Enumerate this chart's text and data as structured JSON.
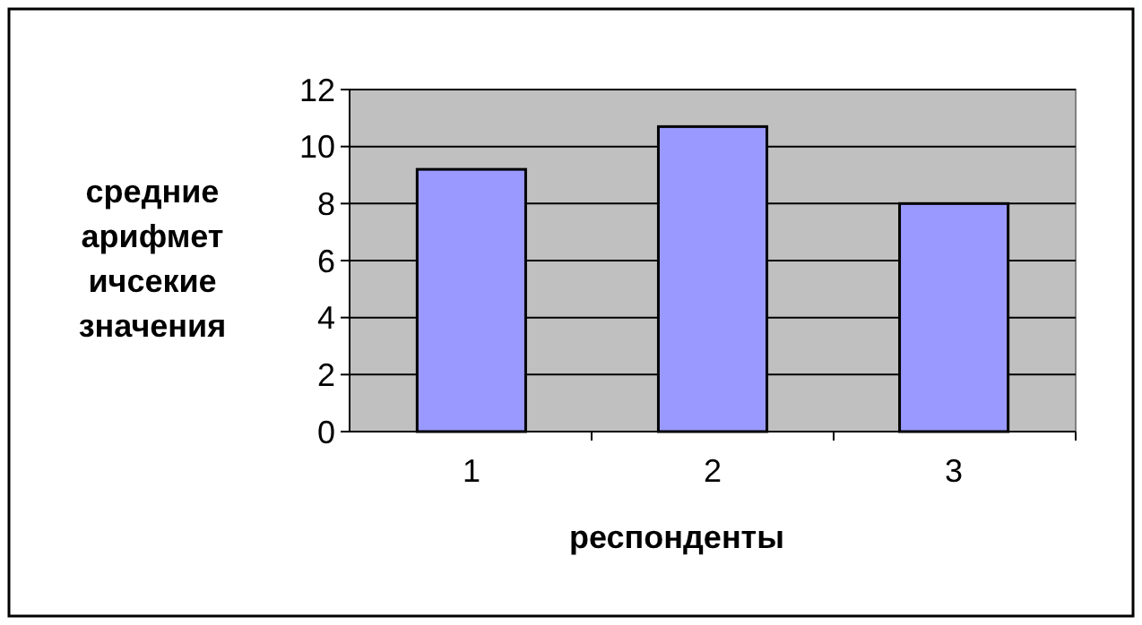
{
  "chart_data": {
    "type": "bar",
    "xlabel": "респонденты",
    "ylabel": "средние арифмет ичсекие значения",
    "categories": [
      "1",
      "2",
      "3"
    ],
    "values": [
      9.2,
      10.7,
      8.0
    ],
    "color": "#9999ff",
    "ylim": [
      0,
      12
    ],
    "yticks": [
      0,
      2,
      4,
      6,
      8,
      10,
      12
    ],
    "grid": "y"
  }
}
